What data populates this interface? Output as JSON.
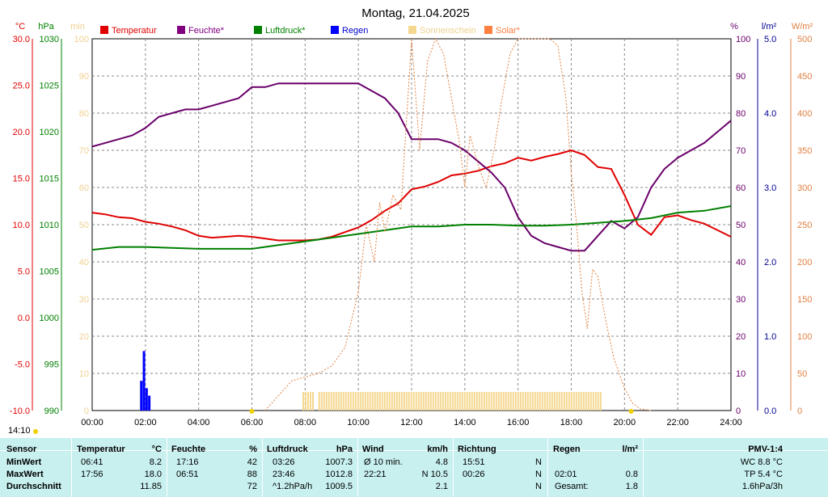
{
  "chart_data": {
    "type": "line",
    "title": "Montag, 21.04.2025",
    "x_ticks": [
      "00:00",
      "02:00",
      "04:00",
      "06:00",
      "08:00",
      "10:00",
      "12:00",
      "14:00",
      "16:00",
      "18:00",
      "20:00",
      "22:00",
      "24:00"
    ],
    "xlim": [
      0,
      24
    ],
    "grid": true,
    "axes": {
      "temp": {
        "unit": "°C",
        "ticks": [
          "30.0",
          "25.0",
          "20.0",
          "15.0",
          "10.0",
          "5.0",
          "0.0",
          "-5.0",
          "-10.0"
        ],
        "range": [
          -10,
          30
        ],
        "color": "#e00000"
      },
      "pressure": {
        "unit": "hPa",
        "ticks": [
          "1030",
          "1025",
          "1020",
          "1015",
          "1010",
          "1005",
          "1000",
          "995",
          "990"
        ],
        "range": [
          990,
          1030
        ],
        "color": "#008000"
      },
      "sunshine_min": {
        "unit": "min",
        "ticks": [
          "100",
          "90",
          "80",
          "70",
          "60",
          "50",
          "40",
          "30",
          "20",
          "10",
          "0"
        ],
        "range": [
          0,
          100
        ],
        "color": "#f5d890"
      },
      "humidity": {
        "unit": "%",
        "ticks": [
          "100",
          "90",
          "80",
          "70",
          "60",
          "50",
          "40",
          "30",
          "20",
          "10",
          "0"
        ],
        "range": [
          0,
          100
        ],
        "color": "#6a006a"
      },
      "rain": {
        "unit": "l/m²",
        "ticks": [
          "5.0",
          "4.0",
          "3.0",
          "2.0",
          "1.0",
          "0.0"
        ],
        "range": [
          0,
          5
        ],
        "color": "#000090"
      },
      "solar": {
        "unit": "W/m²",
        "ticks": [
          "500",
          "450",
          "400",
          "350",
          "300",
          "250",
          "200",
          "150",
          "100",
          "50",
          "0"
        ],
        "range": [
          0,
          500
        ],
        "color": "#e08040"
      }
    },
    "legend": [
      {
        "name": "Temperatur",
        "color": "#e00000"
      },
      {
        "name": "Feuchte*",
        "color": "#800080"
      },
      {
        "name": "Luftdruck*",
        "color": "#008000"
      },
      {
        "name": "Regen",
        "color": "#0000ff"
      },
      {
        "name": "Sonnenschein",
        "color": "#f5d890"
      },
      {
        "name": "Solar*",
        "color": "#ff8040"
      }
    ],
    "series": [
      {
        "name": "Temperatur",
        "axis": "temp",
        "color": "#e00000",
        "x": [
          0,
          0.5,
          1,
          1.5,
          2,
          2.5,
          3,
          3.5,
          4,
          4.5,
          5,
          5.5,
          6,
          6.5,
          7,
          7.5,
          8,
          8.5,
          9,
          9.5,
          10,
          10.5,
          11,
          11.5,
          12,
          12.5,
          13,
          13.5,
          14,
          14.5,
          15,
          15.5,
          16,
          16.5,
          17,
          17.5,
          18,
          18.5,
          19,
          19.5,
          20,
          20.5,
          21,
          21.5,
          22,
          22.5,
          23,
          23.5,
          24
        ],
        "y": [
          11.3,
          11.1,
          10.8,
          10.7,
          10.3,
          10.1,
          9.8,
          9.4,
          8.8,
          8.6,
          8.7,
          8.8,
          8.7,
          8.5,
          8.3,
          8.3,
          8.3,
          8.4,
          8.7,
          9.2,
          9.7,
          10.5,
          11.5,
          12.3,
          13.8,
          14.1,
          14.6,
          15.3,
          15.5,
          15.8,
          16.3,
          16.6,
          17.2,
          16.9,
          17.3,
          17.6,
          18.0,
          17.5,
          16.2,
          16.0,
          13.2,
          10.0,
          8.9,
          10.8,
          11.0,
          10.5,
          10.1,
          9.4,
          8.7
        ]
      },
      {
        "name": "Feuchte*",
        "axis": "humidity",
        "color": "#6a006a",
        "x": [
          0,
          0.5,
          1,
          1.5,
          2,
          2.5,
          3,
          3.5,
          4,
          4.5,
          5,
          5.5,
          6,
          6.5,
          7,
          7.5,
          8,
          8.5,
          9,
          9.5,
          10,
          10.5,
          11,
          11.5,
          12,
          12.5,
          13,
          13.5,
          14,
          14.5,
          15,
          15.5,
          16,
          16.5,
          17,
          17.5,
          18,
          18.5,
          19,
          19.5,
          20,
          20.5,
          21,
          21.5,
          22,
          22.5,
          23,
          23.5,
          24
        ],
        "y": [
          71,
          72,
          73,
          74,
          76,
          79,
          80,
          81,
          81,
          82,
          83,
          84,
          87,
          87,
          88,
          88,
          88,
          88,
          88,
          88,
          88,
          86,
          84,
          80,
          73,
          73,
          73,
          72,
          70,
          67,
          64,
          60,
          52,
          47,
          45,
          44,
          43,
          43,
          47,
          51,
          49,
          52,
          60,
          65,
          68,
          70,
          72,
          75,
          78
        ]
      },
      {
        "name": "Luftdruck*",
        "axis": "pressure",
        "color": "#008000",
        "x": [
          0,
          1,
          2,
          3,
          4,
          5,
          6,
          7,
          8,
          9,
          10,
          11,
          12,
          13,
          14,
          15,
          16,
          17,
          18,
          19,
          20,
          21,
          22,
          23,
          24
        ],
        "y": [
          1007.3,
          1007.6,
          1007.6,
          1007.5,
          1007.4,
          1007.4,
          1007.4,
          1007.8,
          1008.2,
          1008.6,
          1009.0,
          1009.4,
          1009.8,
          1009.8,
          1010.0,
          1010.0,
          1009.9,
          1009.9,
          1010.0,
          1010.2,
          1010.4,
          1010.7,
          1011.3,
          1011.5,
          1012.0
        ]
      },
      {
        "name": "Solar*",
        "axis": "solar",
        "color": "#e08040",
        "x": [
          6.5,
          7,
          7.5,
          8,
          8.5,
          9,
          9.5,
          10,
          10.3,
          10.6,
          10.8,
          11,
          11.3,
          11.6,
          12,
          12.3,
          12.6,
          12.9,
          13.2,
          13.5,
          13.8,
          14,
          14.2,
          14.5,
          14.8,
          15.1,
          15.4,
          15.7,
          16,
          16.3,
          16.6,
          16.9,
          17.2,
          17.5,
          17.8,
          18,
          18.2,
          18.4,
          18.6,
          18.8,
          19,
          19.3,
          19.6,
          20,
          20.3,
          20.6,
          21
        ],
        "y": [
          0,
          20,
          40,
          45,
          50,
          60,
          85,
          160,
          250,
          200,
          280,
          240,
          290,
          270,
          500,
          350,
          470,
          500,
          480,
          420,
          360,
          300,
          370,
          330,
          300,
          350,
          420,
          480,
          500,
          500,
          500,
          500,
          500,
          490,
          420,
          320,
          250,
          160,
          110,
          190,
          180,
          120,
          70,
          30,
          10,
          2,
          0
        ]
      },
      {
        "name": "Sonnenschein",
        "axis": "sunshine_min",
        "color": "#f5d890",
        "type": "bar",
        "x": [
          7.9,
          8.5,
          19.1
        ],
        "y": [
          5,
          5,
          5
        ],
        "note_ranges": [
          [
            7.9,
            8.3
          ],
          [
            8.5,
            19.1
          ]
        ]
      },
      {
        "name": "Regen",
        "axis": "rain",
        "color": "#0000ff",
        "type": "bar",
        "x": [
          1.8,
          1.9,
          2.0,
          2.1
        ],
        "y": [
          0.4,
          0.8,
          0.3,
          0.2
        ]
      }
    ],
    "current_time_label": "14:10"
  },
  "stats": {
    "headers": {
      "sensor": "Sensor",
      "temperatur": "Temperatur",
      "temperatur_unit": "°C",
      "feuchte": "Feuchte",
      "feuchte_unit": "%",
      "luftdruck": "Luftdruck",
      "luftdruck_unit": "hPa",
      "wind": "Wind",
      "wind_unit": "km/h",
      "richtung": "Richtung",
      "regen": "Regen",
      "regen_unit": "l/m²",
      "pmv": "PMV-1:4"
    },
    "rows": [
      {
        "label": "MinWert",
        "temp_time": "06:41",
        "temp_val": "8.2",
        "hum_time": "17:16",
        "hum_val": "42",
        "press_time": "03:26",
        "press_val": "1007.3",
        "wind_time": "Ø 10 min.",
        "wind_val": "4.8",
        "dir_time": "15:51",
        "dir_val": "N",
        "rain_time": "",
        "rain_val": "",
        "pmv": "WC 8.8 °C"
      },
      {
        "label": "MaxWert",
        "temp_time": "17:56",
        "temp_val": "18.0",
        "hum_time": "06:51",
        "hum_val": "88",
        "press_time": "23:46",
        "press_val": "1012.8",
        "wind_time": "22:21",
        "wind_val": "N 10.5",
        "dir_time": "00:26",
        "dir_val": "N",
        "rain_time": "02:01",
        "rain_val": "0.8",
        "pmv": "TP 5.4 °C"
      },
      {
        "label": "Durchschnitt",
        "temp_time": "",
        "temp_val": "11.85",
        "hum_time": "",
        "hum_val": "72",
        "press_time": "^1.2hPa/h",
        "press_val": "1009.5",
        "wind_time": "",
        "wind_val": "2.1",
        "dir_time": "",
        "dir_val": "N",
        "rain_time": "Gesamt:",
        "rain_val": "1.8",
        "pmv": "1.6hPa/3h"
      }
    ]
  }
}
